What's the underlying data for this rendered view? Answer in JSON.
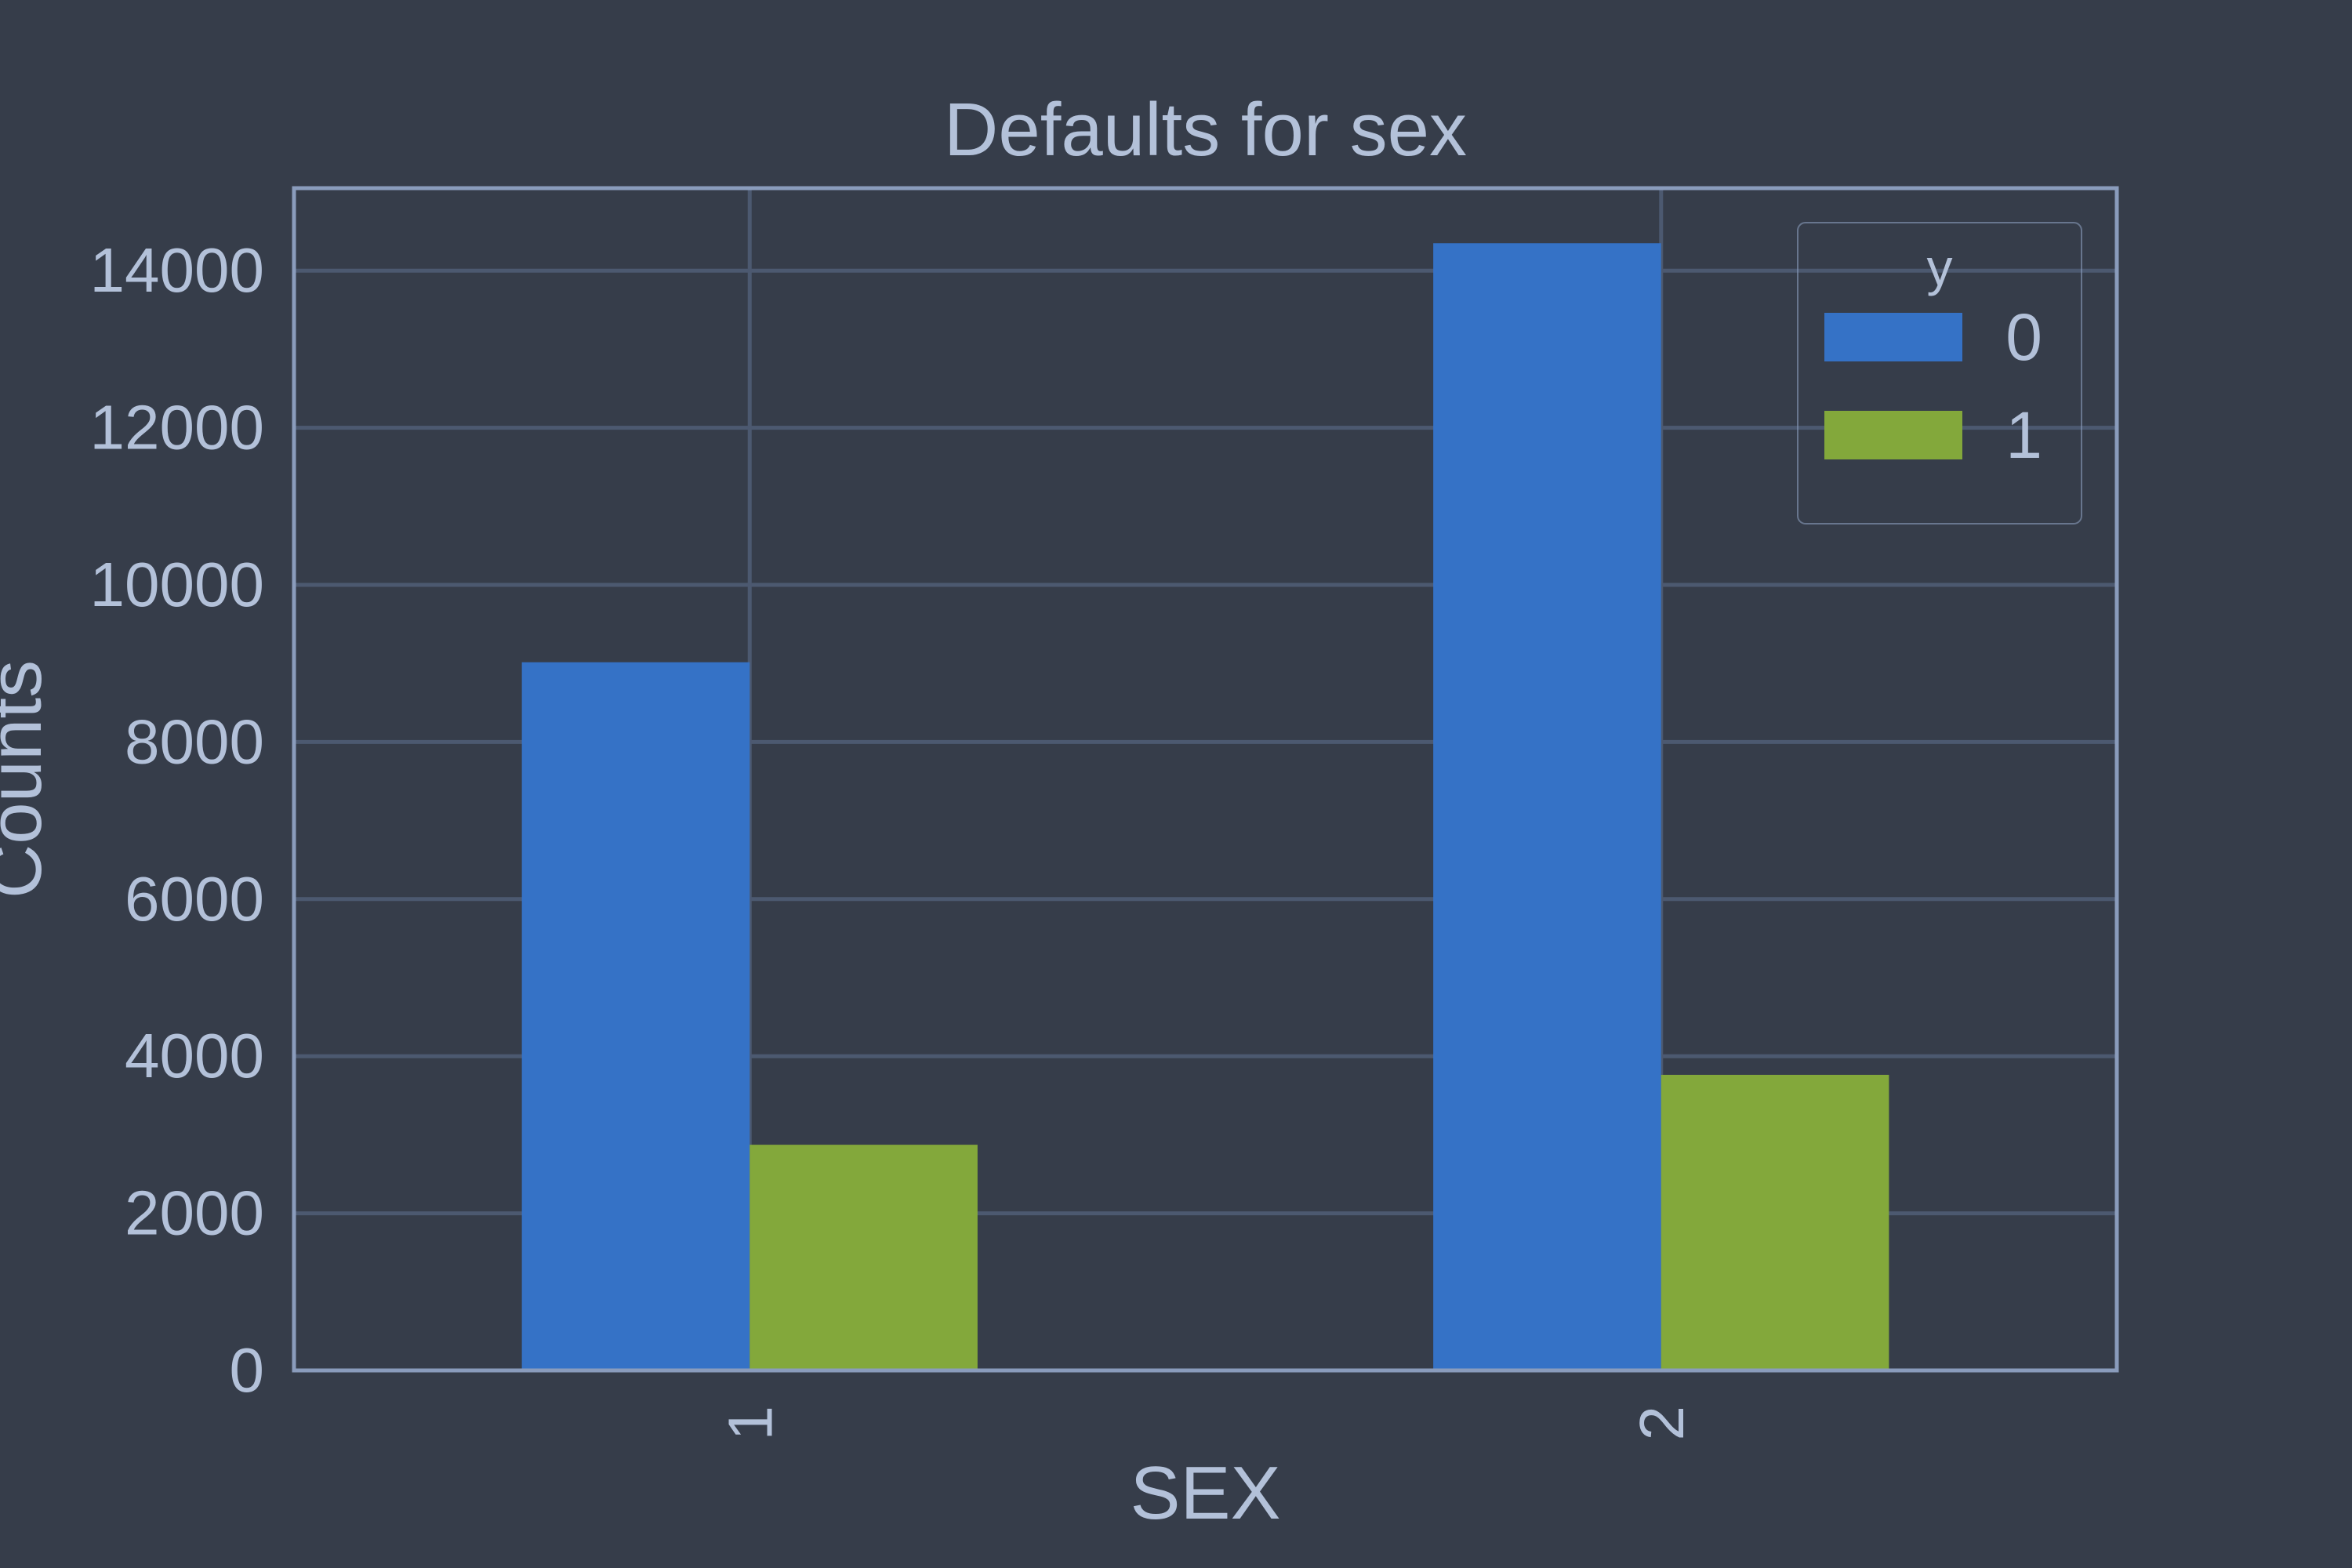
{
  "colors": {
    "background": "#363d4a",
    "text": "#b3c1d9",
    "grid": "#4c5970",
    "axes_frame": "#8a9cbc",
    "legend_frame": "#8a9cbc"
  },
  "chart_data": {
    "type": "bar",
    "title": "Defaults for sex",
    "xlabel": "SEX",
    "ylabel": "Counts",
    "categories": [
      "1",
      "2"
    ],
    "x_tick_rotation": 90,
    "series": [
      {
        "name": "0",
        "color": "#3572c6",
        "values": [
          9015,
          14349
        ]
      },
      {
        "name": "1",
        "color": "#83a83b",
        "values": [
          2873,
          3763
        ]
      }
    ],
    "ylim": [
      0,
      15050
    ],
    "yticks": [
      0,
      2000,
      4000,
      6000,
      8000,
      10000,
      12000,
      14000
    ],
    "ytick_labels": [
      "0",
      "2000",
      "4000",
      "6000",
      "8000",
      "10000",
      "12000",
      "14000"
    ],
    "grid": true,
    "legend": {
      "title": "y",
      "placement": "top-right",
      "entries": [
        "0",
        "1"
      ]
    }
  }
}
